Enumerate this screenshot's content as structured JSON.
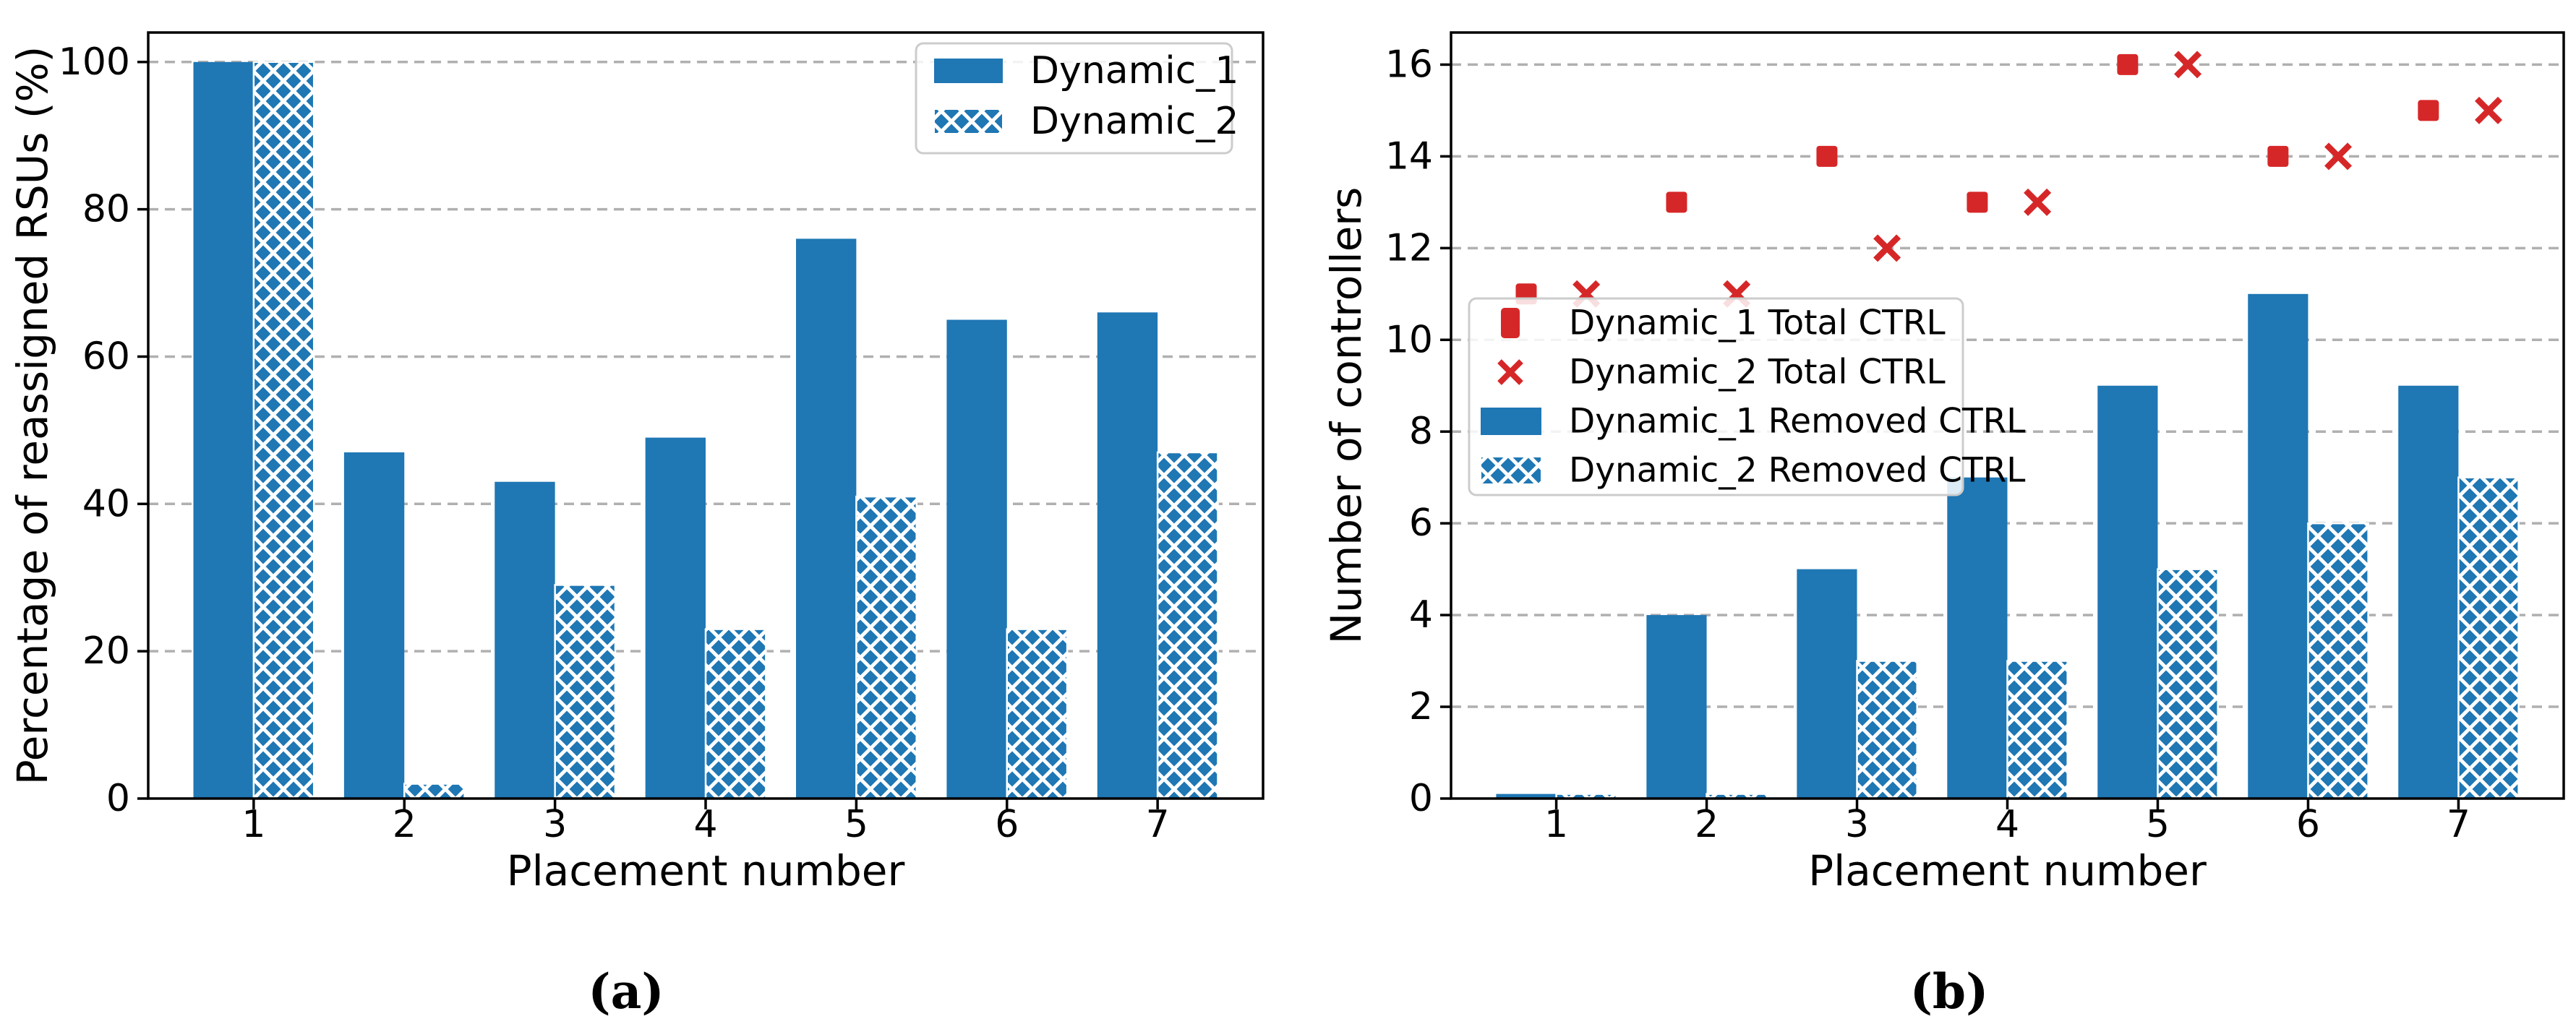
{
  "captions": {
    "a": "(a)",
    "b": "(b)"
  },
  "colors": {
    "series_blue": "#1f77b4",
    "series_red": "#d62728",
    "grid": "#b0b0b0",
    "axis": "#000000",
    "legend_border": "#cccccc",
    "background": "#ffffff"
  },
  "chart_data": [
    {
      "id": "a",
      "type": "bar",
      "title": "",
      "xlabel": "Placement number",
      "ylabel": "Percentage of reassigned RSUs (%)",
      "categories": [
        1,
        2,
        3,
        4,
        5,
        6,
        7
      ],
      "series": [
        {
          "name": "Dynamic_1",
          "style": "solid-bar",
          "color": "#1f77b4",
          "values": [
            100,
            47,
            43,
            49,
            76,
            65,
            66
          ]
        },
        {
          "name": "Dynamic_2",
          "style": "hatched-bar",
          "color": "#1f77b4",
          "values": [
            100,
            2,
            29,
            23,
            41,
            23,
            47
          ]
        }
      ],
      "xlim": [
        0.3,
        7.7
      ],
      "ylim": [
        0,
        104
      ],
      "yticks": [
        0,
        20,
        40,
        60,
        80,
        100
      ],
      "xticks": [
        1,
        2,
        3,
        4,
        5,
        6,
        7
      ],
      "grid": "horizontal-dashed",
      "legend_position": "upper-right"
    },
    {
      "id": "b",
      "type": "bar+scatter",
      "title": "",
      "xlabel": "Placement number",
      "ylabel": "Number of controllers",
      "categories": [
        1,
        2,
        3,
        4,
        5,
        6,
        7
      ],
      "series": [
        {
          "name": "Dynamic_1 Total CTRL",
          "style": "square-marker",
          "color": "#d62728",
          "values": [
            11,
            13,
            14,
            13,
            16,
            14,
            15
          ]
        },
        {
          "name": "Dynamic_2 Total CTRL",
          "style": "x-marker",
          "color": "#d62728",
          "values": [
            11,
            11,
            12,
            13,
            16,
            14,
            15
          ]
        },
        {
          "name": "Dynamic_1 Removed CTRL",
          "style": "solid-bar",
          "color": "#1f77b4",
          "values": [
            0.1,
            4,
            5,
            7,
            9,
            11,
            9
          ]
        },
        {
          "name": "Dynamic_2 Removed CTRL",
          "style": "hatched-bar",
          "color": "#1f77b4",
          "values": [
            0.1,
            0.1,
            3,
            3,
            5,
            6,
            7
          ]
        }
      ],
      "xlim": [
        0.3,
        7.7
      ],
      "ylim": [
        0,
        16.7
      ],
      "yticks": [
        0,
        2,
        4,
        6,
        8,
        10,
        12,
        14,
        16
      ],
      "xticks": [
        1,
        2,
        3,
        4,
        5,
        6,
        7
      ],
      "grid": "horizontal-dashed",
      "legend_position": "center-left"
    }
  ]
}
